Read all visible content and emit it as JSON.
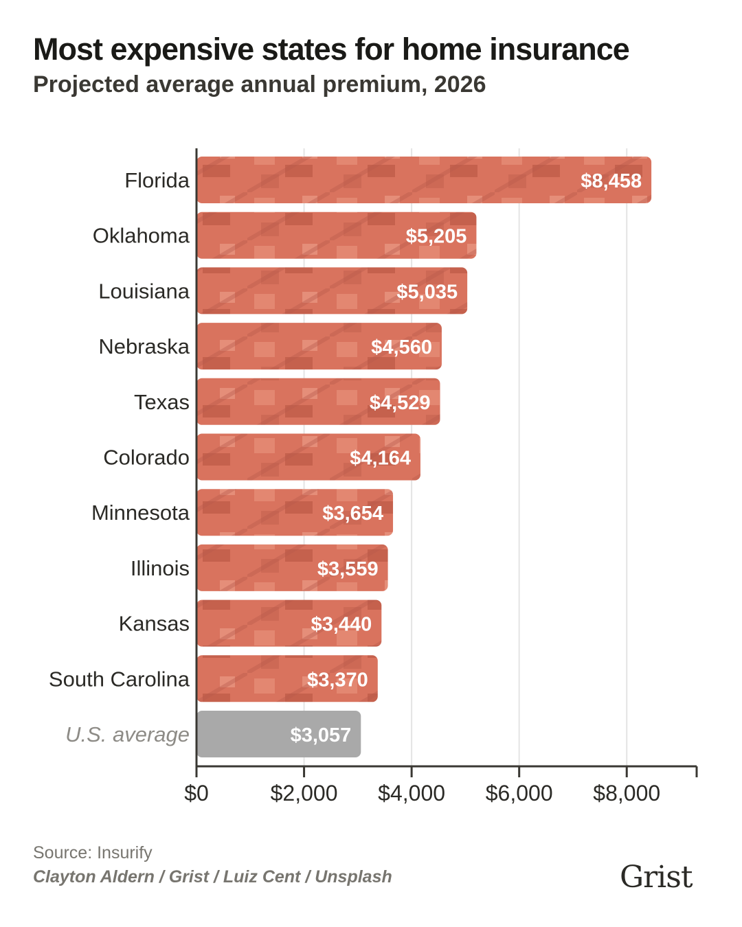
{
  "chart_data": {
    "type": "bar",
    "orientation": "horizontal",
    "title": "Most expensive states for home insurance",
    "subtitle": "Projected average annual premium, 2026",
    "categories": [
      "Florida",
      "Oklahoma",
      "Louisiana",
      "Nebraska",
      "Texas",
      "Colorado",
      "Minnesota",
      "Illinois",
      "Kansas",
      "South Carolina",
      "U.S. average"
    ],
    "values": [
      8458,
      5205,
      5035,
      4560,
      4529,
      4164,
      3654,
      3559,
      3440,
      3370,
      3057
    ],
    "data_labels": [
      "$8,458",
      "$5,205",
      "$5,035",
      "$4,560",
      "$4,529",
      "$4,164",
      "$3,654",
      "$3,559",
      "$3,440",
      "$3,370",
      "$3,057"
    ],
    "highlight": "U.S. average",
    "xlim": [
      0,
      9300
    ],
    "xticks": [
      0,
      2000,
      4000,
      6000,
      8000
    ],
    "xtick_labels": [
      "$0",
      "$2,000",
      "$4,000",
      "$6,000",
      "$8,000"
    ],
    "xlabel": "",
    "ylabel": "",
    "grid": "vertical",
    "colors": {
      "bar": "#d9735e",
      "bar_texture": "#c4604c",
      "average_bar": "#a9a9a9",
      "grid": "#e4e4e4",
      "axis": "#3a3833"
    }
  },
  "footer": {
    "source": "Source: Insurify",
    "credit": "Clayton Aldern / Grist / Luiz Cent / Unsplash",
    "logo": "Grist"
  }
}
